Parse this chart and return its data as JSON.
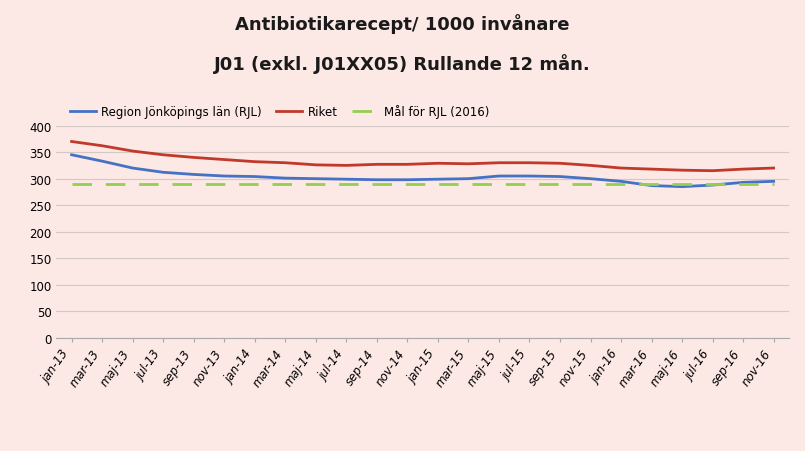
{
  "title_line1": "Antibiotikarecept/ 1000 invånare",
  "title_line2": "J01 (exkl. J01XX05) Rullande 12 mån.",
  "background_color": "#fce8e4",
  "legend_labels": [
    "Region Jönköpings län (RJL)",
    "Riket",
    "Mål för RJL (2016)"
  ],
  "x_labels": [
    "jan-13",
    "mar-13",
    "maj-13",
    "jul-13",
    "sep-13",
    "nov-13",
    "jan-14",
    "mar-14",
    "maj-14",
    "jul-14",
    "sep-14",
    "nov-14",
    "jan-15",
    "mar-15",
    "maj-15",
    "jul-15",
    "sep-15",
    "nov-15",
    "jan-16",
    "mar-16",
    "maj-16",
    "jul-16",
    "sep-16",
    "nov-16"
  ],
  "rjl": [
    345,
    333,
    320,
    312,
    308,
    305,
    304,
    301,
    300,
    299,
    298,
    298,
    299,
    300,
    305,
    305,
    304,
    300,
    295,
    287,
    285,
    288,
    293,
    295
  ],
  "riket": [
    370,
    362,
    352,
    345,
    340,
    336,
    332,
    330,
    326,
    325,
    327,
    327,
    329,
    328,
    330,
    330,
    329,
    325,
    320,
    318,
    316,
    315,
    318,
    320
  ],
  "mal": [
    290,
    290,
    290,
    290,
    290,
    290,
    290,
    290,
    290,
    290,
    290,
    290,
    290,
    290,
    290,
    290,
    290,
    290,
    290,
    290,
    290,
    290,
    290,
    290
  ],
  "rjl_color": "#4472c4",
  "riket_color": "#c0392b",
  "mal_color": "#92d050",
  "ylim": [
    0,
    400
  ],
  "yticks": [
    0,
    50,
    100,
    150,
    200,
    250,
    300,
    350,
    400
  ],
  "grid_color": "#d4c8c4",
  "title_fontsize": 13,
  "axis_label_fontsize": 8.5,
  "legend_fontsize": 8.5
}
